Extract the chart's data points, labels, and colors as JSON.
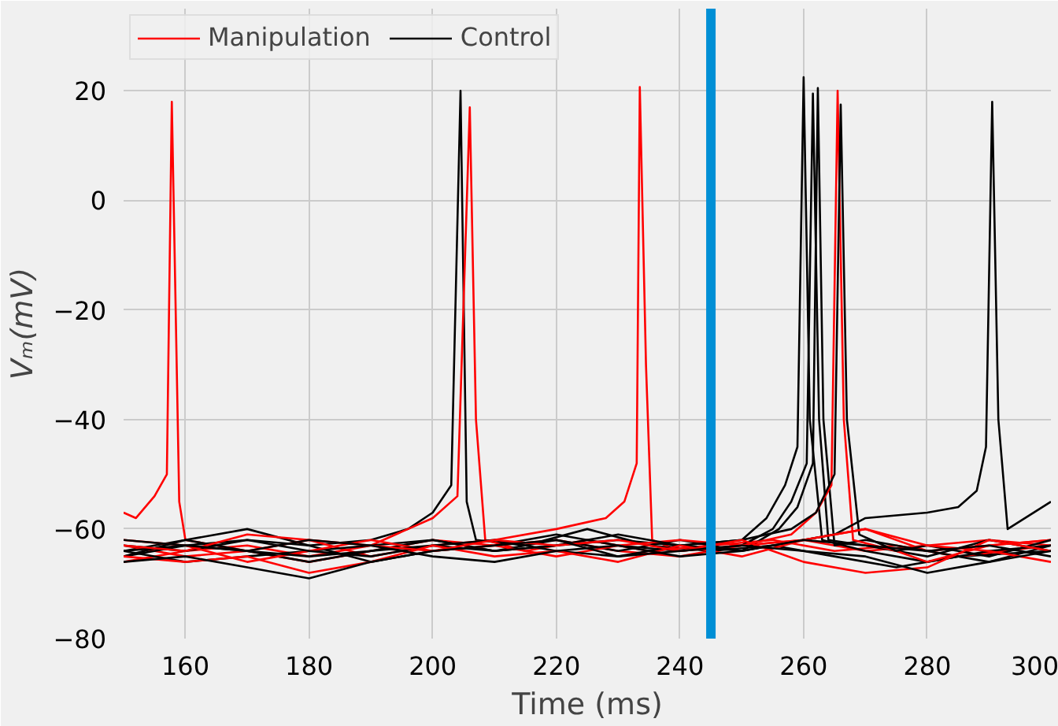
{
  "chart_data": {
    "type": "line",
    "xlabel": "Time (ms)",
    "ylabel": "Vₘ(mV)",
    "xlim": [
      150,
      300
    ],
    "ylim": [
      -80,
      35
    ],
    "xticks": [
      160,
      180,
      200,
      220,
      240,
      260,
      280,
      300
    ],
    "yticks": [
      -80,
      -60,
      -40,
      -20,
      0,
      20
    ],
    "grid": true,
    "legend": "top left",
    "marker": "none",
    "line_style": "solid",
    "ref_lines": [
      {
        "axis": "x",
        "value": 245,
        "color": "#008fd5"
      }
    ],
    "series": [
      {
        "name": "Manipulation",
        "color": "#ff0000",
        "x": [
          150,
          152,
          155,
          157,
          157.8,
          159,
          160,
          165,
          170,
          180,
          190,
          200,
          210,
          220,
          230,
          240,
          250,
          260,
          270,
          280,
          290,
          300
        ],
        "values": [
          -57,
          -58,
          -54,
          -50,
          18,
          -55,
          -62,
          -63,
          -64,
          -66,
          -64,
          -62,
          -63,
          -62,
          -64,
          -65,
          -63,
          -62,
          -64,
          -63,
          -62,
          -63
        ]
      },
      {
        "name": "Control",
        "color": "#000000",
        "x": [
          150,
          160,
          170,
          180,
          190,
          196,
          200,
          203,
          204.5,
          205.5,
          207,
          215,
          225,
          235,
          245,
          255,
          265,
          275,
          285,
          300
        ],
        "values": [
          -64,
          -62,
          -60,
          -63,
          -62,
          -60,
          -57,
          -52,
          20,
          -55,
          -62,
          -63,
          -60,
          -63,
          -64,
          -63,
          -65,
          -67,
          -65,
          -64
        ]
      },
      {
        "color": "#ff0000",
        "x": [
          150,
          160,
          170,
          180,
          190,
          196,
          200,
          204,
          206,
          207,
          208.5,
          215,
          225,
          235,
          245,
          255,
          265,
          275,
          285,
          300
        ],
        "values": [
          -66,
          -64,
          -63,
          -65,
          -63,
          -60,
          -58,
          -54,
          17,
          -40,
          -62,
          -64,
          -62,
          -64,
          -63,
          -62,
          -64,
          -63,
          -65,
          -63
        ]
      },
      {
        "color": "#ff0000",
        "x": [
          150,
          160,
          170,
          180,
          190,
          200,
          210,
          220,
          228,
          231,
          233,
          233.5,
          234.5,
          235.5,
          240,
          250,
          260,
          270,
          280,
          290,
          300
        ],
        "values": [
          -63,
          -65,
          -64,
          -62,
          -65,
          -63,
          -62,
          -60,
          -58,
          -55,
          -48,
          20.7,
          -30,
          -62,
          -64,
          -63,
          -62,
          -60,
          -64,
          -63,
          -62
        ]
      },
      {
        "color": "#000000",
        "x": [
          150,
          160,
          170,
          180,
          190,
          200,
          210,
          220,
          230,
          240,
          250,
          254,
          257,
          259,
          260,
          261,
          263,
          270,
          280,
          290,
          300
        ],
        "values": [
          -65,
          -63,
          -64,
          -66,
          -64,
          -62,
          -64,
          -63,
          -62,
          -63,
          -62,
          -58,
          -52,
          -45,
          22.5,
          -40,
          -62,
          -64,
          -66,
          -64,
          -63
        ]
      },
      {
        "color": "#000000",
        "x": [
          150,
          160,
          170,
          180,
          190,
          200,
          210,
          220,
          230,
          240,
          250,
          255,
          258,
          260.5,
          261.5,
          262.5,
          264,
          270,
          280,
          290,
          300
        ],
        "values": [
          -63,
          -64,
          -62,
          -63,
          -66,
          -64,
          -63,
          -61,
          -63,
          -64,
          -63,
          -60,
          -55,
          -48,
          19.5,
          -40,
          -62,
          -63,
          -65,
          -62,
          -64
        ]
      },
      {
        "color": "#000000",
        "x": [
          150,
          160,
          170,
          180,
          190,
          200,
          210,
          220,
          230,
          240,
          250,
          256,
          259,
          261.5,
          262.3,
          263.2,
          265,
          270,
          280,
          290,
          300
        ],
        "values": [
          -64,
          -66,
          -65,
          -64,
          -63,
          -62,
          -64,
          -62,
          -64,
          -62,
          -64,
          -60,
          -56,
          -48,
          20.5,
          -40,
          -63,
          -62,
          -64,
          -66,
          -63
        ]
      },
      {
        "color": "#ff0000",
        "x": [
          150,
          160,
          170,
          180,
          190,
          200,
          210,
          220,
          230,
          240,
          250,
          258,
          262,
          264.5,
          265.5,
          266.5,
          268,
          275,
          280,
          290,
          300
        ],
        "values": [
          -62,
          -63,
          -66,
          -64,
          -62,
          -64,
          -63,
          -65,
          -63,
          -62,
          -63,
          -61,
          -57,
          -52,
          20,
          -40,
          -62,
          -64,
          -66,
          -63,
          -62
        ]
      },
      {
        "color": "#000000",
        "x": [
          150,
          160,
          170,
          180,
          190,
          200,
          210,
          220,
          230,
          240,
          250,
          258,
          262,
          265,
          266,
          267,
          269,
          275,
          280,
          290,
          300
        ],
        "values": [
          -65,
          -62,
          -64,
          -65,
          -64,
          -63,
          -62,
          -64,
          -65,
          -63,
          -62,
          -60,
          -57,
          -50,
          17.5,
          -40,
          -61,
          -64,
          -63,
          -65,
          -62
        ]
      },
      {
        "color": "#000000",
        "x": [
          150,
          160,
          170,
          180,
          190,
          200,
          210,
          220,
          230,
          240,
          250,
          260,
          265,
          270,
          280,
          285,
          288,
          289.5,
          290.5,
          291.5,
          293,
          300
        ],
        "values": [
          -64,
          -63,
          -62,
          -64,
          -65,
          -63,
          -64,
          -63,
          -61,
          -63,
          -64,
          -62,
          -61,
          -58,
          -57,
          -56,
          -53,
          -45,
          18,
          -40,
          -60,
          -55
        ]
      },
      {
        "color": "#ff0000",
        "x": [
          150,
          160,
          170,
          180,
          190,
          200,
          210,
          220,
          230,
          240,
          250,
          260,
          270,
          280,
          290,
          300
        ],
        "values": [
          -65,
          -66,
          -65,
          -68,
          -66,
          -63,
          -65,
          -64,
          -66,
          -63,
          -65,
          -62,
          -60,
          -63,
          -64,
          -66
        ]
      },
      {
        "color": "#ff0000",
        "x": [
          150,
          160,
          170,
          180,
          190,
          200,
          210,
          220,
          230,
          240,
          250,
          260,
          270,
          280,
          290,
          300
        ],
        "values": [
          -63,
          -64,
          -61,
          -62,
          -63,
          -64,
          -62,
          -63,
          -62,
          -64,
          -62,
          -66,
          -68,
          -67,
          -62,
          -64
        ]
      },
      {
        "color": "#000000",
        "x": [
          150,
          160,
          170,
          180,
          190,
          200,
          210,
          220,
          230,
          240,
          250,
          260,
          270,
          280,
          290,
          300
        ],
        "values": [
          -66,
          -65,
          -67,
          -69,
          -66,
          -64,
          -63,
          -62,
          -65,
          -64,
          -63,
          -64,
          -65,
          -68,
          -66,
          -64
        ]
      },
      {
        "color": "#000000",
        "x": [
          150,
          160,
          170,
          180,
          190,
          200,
          210,
          220,
          230,
          240,
          250,
          260,
          270,
          280,
          290,
          300
        ],
        "values": [
          -62,
          -63,
          -64,
          -62,
          -63,
          -65,
          -66,
          -64,
          -63,
          -65,
          -64,
          -62,
          -63,
          -64,
          -63,
          -65
        ]
      }
    ]
  }
}
